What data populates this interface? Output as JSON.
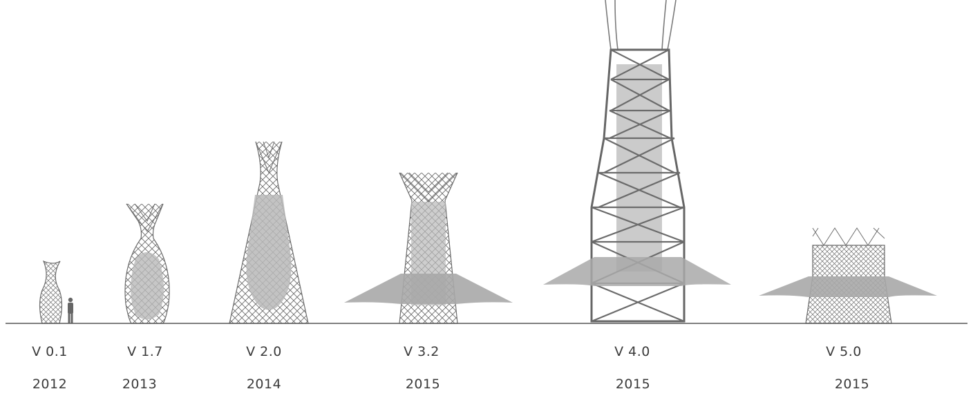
{
  "towers": [
    {
      "version": "V 0.1",
      "year": "2012"
    },
    {
      "version": "V 1.7",
      "year": "2013"
    },
    {
      "version": "V 2.0",
      "year": "2014"
    },
    {
      "version": "V 3.2",
      "year": "2015"
    },
    {
      "version": "V 4.0",
      "year": "2015"
    },
    {
      "version": "V 5.0",
      "year": "2015"
    }
  ],
  "colors": {
    "line": "#6b6b6b",
    "fill": "#b9b9b9",
    "canopy": "#a9a9a9",
    "ground": "#555555",
    "text": "#3a3a3a"
  }
}
